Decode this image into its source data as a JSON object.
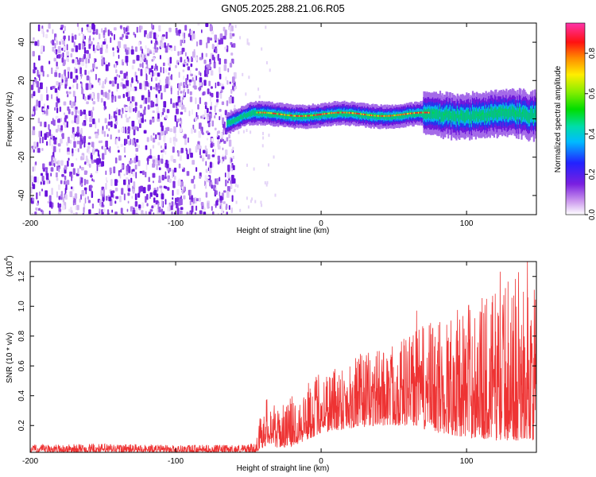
{
  "title": "GN05.2025.288.21.06.R05",
  "chart_data": [
    {
      "type": "heatmap",
      "xlabel": "Height of straight line (km)",
      "ylabel": "Frequency (Hz)",
      "xlim": [
        -200,
        148
      ],
      "ylim": [
        -50,
        50
      ],
      "x_ticks": [
        -200,
        -100,
        0,
        100
      ],
      "y_ticks": [
        -40,
        -20,
        0,
        20,
        40
      ],
      "noise_region_x": [
        -200,
        -60
      ],
      "signal_center_hz": 2,
      "signal_onset_km": -65,
      "colorbar": {
        "label": "Normalized spectral amplitude",
        "range": [
          0.0,
          0.95
        ],
        "ticks": [
          0.0,
          0.2,
          0.4,
          0.6,
          0.8
        ]
      }
    },
    {
      "type": "line",
      "xlabel": "Height of straight line (km)",
      "ylabel": "SNR (10 * v/v)",
      "multiplier_label": "(x10",
      "multiplier_exp": "4",
      "multiplier_close": ")",
      "xlim": [
        -200,
        148
      ],
      "ylim": [
        0.02,
        1.3
      ],
      "x_ticks": [
        -200,
        -100,
        0,
        100
      ],
      "y_ticks": [
        0.2,
        0.4,
        0.6,
        0.8,
        1.0,
        1.2
      ],
      "series": [
        {
          "name": "SNR",
          "color": "#ee3333",
          "x": [
            -200,
            -150,
            -100,
            -60,
            -45,
            -40,
            -35,
            -30,
            -20,
            -10,
            0,
            20,
            40,
            60,
            80,
            100,
            120,
            148
          ],
          "upper": [
            0.07,
            0.08,
            0.07,
            0.07,
            0.08,
            0.38,
            0.4,
            0.3,
            0.4,
            0.48,
            0.58,
            0.66,
            0.72,
            0.82,
            0.92,
            1.02,
            1.12,
            1.12
          ],
          "lower": [
            0.02,
            0.02,
            0.02,
            0.02,
            0.02,
            0.05,
            0.08,
            0.05,
            0.06,
            0.1,
            0.15,
            0.18,
            0.2,
            0.2,
            0.15,
            0.12,
            0.1,
            0.1
          ]
        }
      ]
    }
  ]
}
